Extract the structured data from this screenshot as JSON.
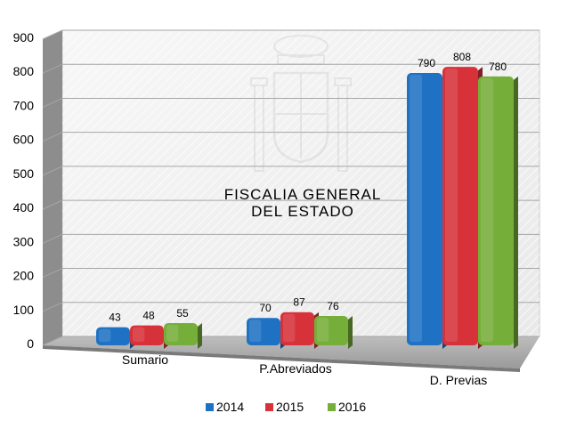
{
  "chart_data": {
    "type": "bar",
    "categories": [
      "Sumario",
      "P.Abreviados",
      "D. Previas"
    ],
    "series": [
      {
        "name": "2014",
        "values": [
          43,
          70,
          790
        ],
        "color": "#1f72c3"
      },
      {
        "name": "2015",
        "values": [
          48,
          87,
          808
        ],
        "color": "#d7323a"
      },
      {
        "name": "2016",
        "values": [
          55,
          76,
          780
        ],
        "color": "#76ae3a"
      }
    ],
    "title": "",
    "xlabel": "",
    "ylabel": "",
    "ylim": [
      0,
      900
    ],
    "yticks": [
      0,
      100,
      200,
      300,
      400,
      500,
      600,
      700,
      800,
      900
    ],
    "grid": true,
    "legend": "bottom-center",
    "watermark": {
      "icon": "coat-of-arms-icon",
      "lines": [
        "FISCALIA GENERAL",
        "DEL ESTADO"
      ]
    }
  }
}
